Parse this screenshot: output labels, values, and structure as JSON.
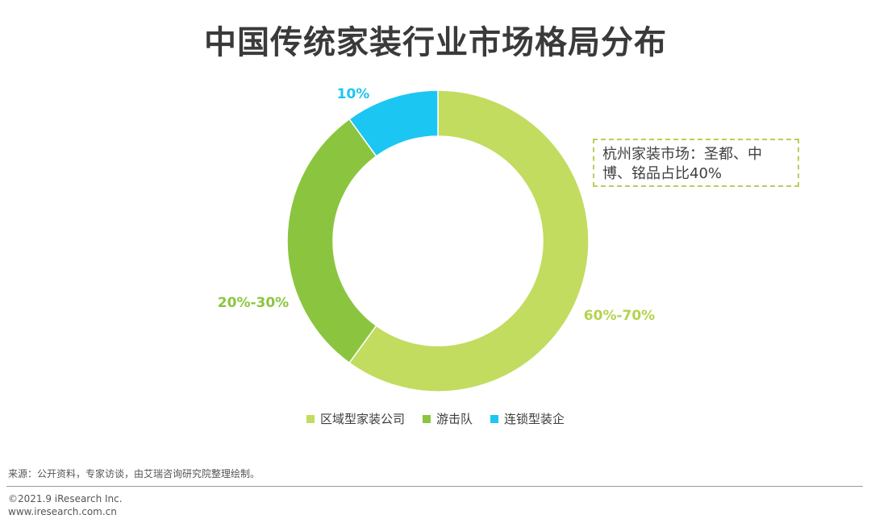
{
  "title": "中国传统家装行业市场格局分布",
  "callout": "杭州家装市场：圣都、中博、铭品占比40%",
  "chart_data": {
    "type": "pie",
    "donut": true,
    "title": "中国传统家装行业市场格局分布",
    "categories": [
      "区域型家装公司",
      "游击队",
      "连锁型装企"
    ],
    "values": [
      60,
      30,
      10
    ],
    "labels": [
      "60%-70%",
      "20%-30%",
      "10%"
    ],
    "colors": [
      "#c1dc5f",
      "#8bc540",
      "#1cc6f2"
    ],
    "legend_position": "bottom"
  },
  "legend": [
    {
      "label": "区域型家装公司",
      "color": "#c1dc5f"
    },
    {
      "label": "游击队",
      "color": "#8bc540"
    },
    {
      "label": "连锁型装企",
      "color": "#1cc6f2"
    }
  ],
  "footer": {
    "source": "来源：公开资料，专家访谈，由艾瑞咨询研究院整理绘制。",
    "copyright": "©2021.9 iResearch Inc.",
    "website": "www.iresearch.com.cn"
  }
}
